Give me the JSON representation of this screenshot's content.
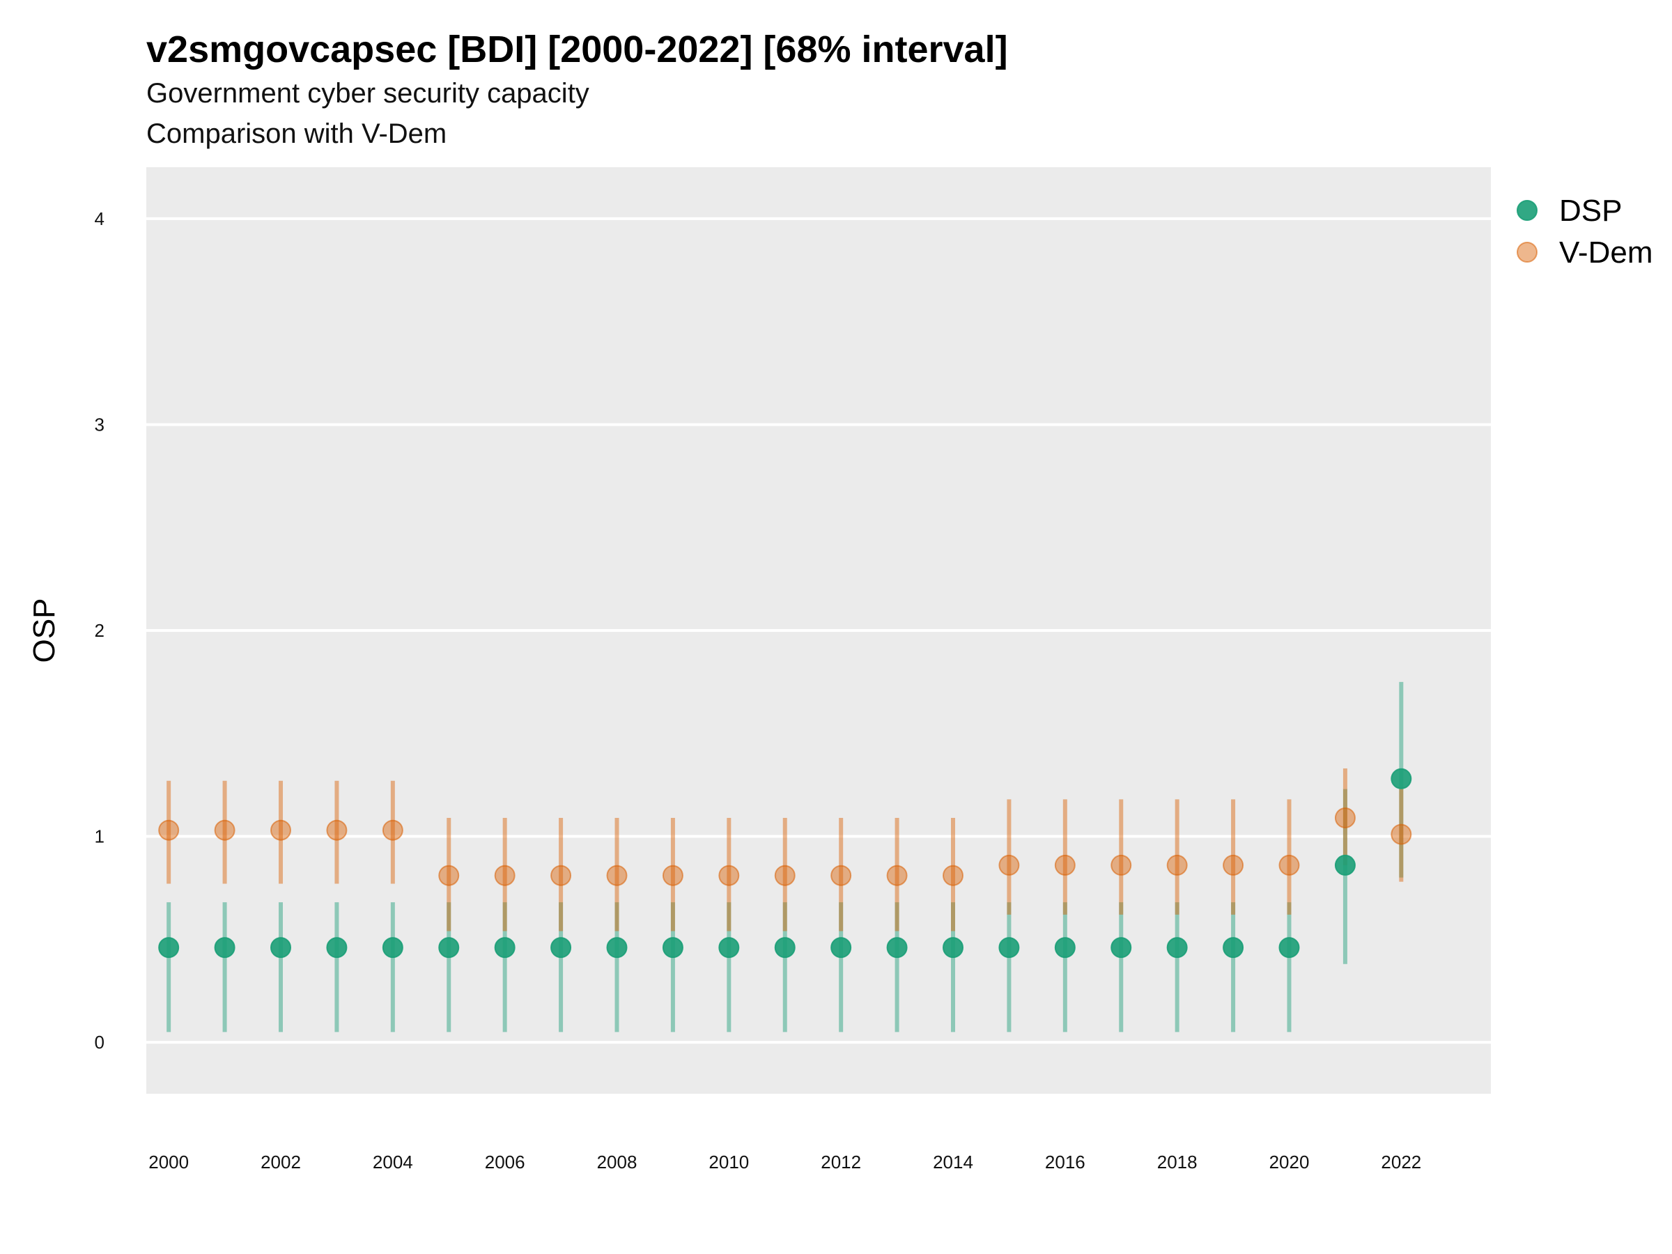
{
  "chart_data": {
    "type": "scatter",
    "title": "v2smgovcapsec [BDI] [2000-2022] [68% interval]",
    "subtitle": "Government cyber security capacity",
    "subtitle2": "Comparison with V-Dem",
    "xlabel": "",
    "ylabel": "OSP",
    "ylim": [
      -0.25,
      4.25
    ],
    "yticks": [
      0,
      1,
      2,
      3,
      4
    ],
    "xticks": [
      2000,
      2002,
      2004,
      2006,
      2008,
      2010,
      2012,
      2014,
      2016,
      2018,
      2020,
      2022
    ],
    "x": [
      2000,
      2001,
      2002,
      2003,
      2004,
      2005,
      2006,
      2007,
      2008,
      2009,
      2010,
      2011,
      2012,
      2013,
      2014,
      2015,
      2016,
      2017,
      2018,
      2019,
      2020,
      2021,
      2022
    ],
    "grid": true,
    "legend_position": "right",
    "series": [
      {
        "name": "DSP",
        "color": "#1b9e77",
        "values": [
          0.46,
          0.46,
          0.46,
          0.46,
          0.46,
          0.46,
          0.46,
          0.46,
          0.46,
          0.46,
          0.46,
          0.46,
          0.46,
          0.46,
          0.46,
          0.46,
          0.46,
          0.46,
          0.46,
          0.46,
          0.46,
          0.86,
          1.28
        ],
        "lower": [
          0.05,
          0.05,
          0.05,
          0.05,
          0.05,
          0.05,
          0.05,
          0.05,
          0.05,
          0.05,
          0.05,
          0.05,
          0.05,
          0.05,
          0.05,
          0.05,
          0.05,
          0.05,
          0.05,
          0.05,
          0.05,
          0.38,
          0.8
        ],
        "upper": [
          0.68,
          0.68,
          0.68,
          0.68,
          0.68,
          0.68,
          0.68,
          0.68,
          0.68,
          0.68,
          0.68,
          0.68,
          0.68,
          0.68,
          0.68,
          0.68,
          0.68,
          0.68,
          0.68,
          0.68,
          0.68,
          1.23,
          1.75
        ]
      },
      {
        "name": "V-Dem",
        "color": "#d95f02",
        "values": [
          1.03,
          1.03,
          1.03,
          1.03,
          1.03,
          0.81,
          0.81,
          0.81,
          0.81,
          0.81,
          0.81,
          0.81,
          0.81,
          0.81,
          0.81,
          0.86,
          0.86,
          0.86,
          0.86,
          0.86,
          0.86,
          1.09,
          1.01
        ],
        "lower": [
          0.77,
          0.77,
          0.77,
          0.77,
          0.77,
          0.54,
          0.54,
          0.54,
          0.54,
          0.54,
          0.54,
          0.54,
          0.54,
          0.54,
          0.54,
          0.62,
          0.62,
          0.62,
          0.62,
          0.62,
          0.62,
          0.86,
          0.78
        ],
        "upper": [
          1.27,
          1.27,
          1.27,
          1.27,
          1.27,
          1.09,
          1.09,
          1.09,
          1.09,
          1.09,
          1.09,
          1.09,
          1.09,
          1.09,
          1.09,
          1.18,
          1.18,
          1.18,
          1.18,
          1.18,
          1.18,
          1.33,
          1.23
        ]
      }
    ]
  }
}
